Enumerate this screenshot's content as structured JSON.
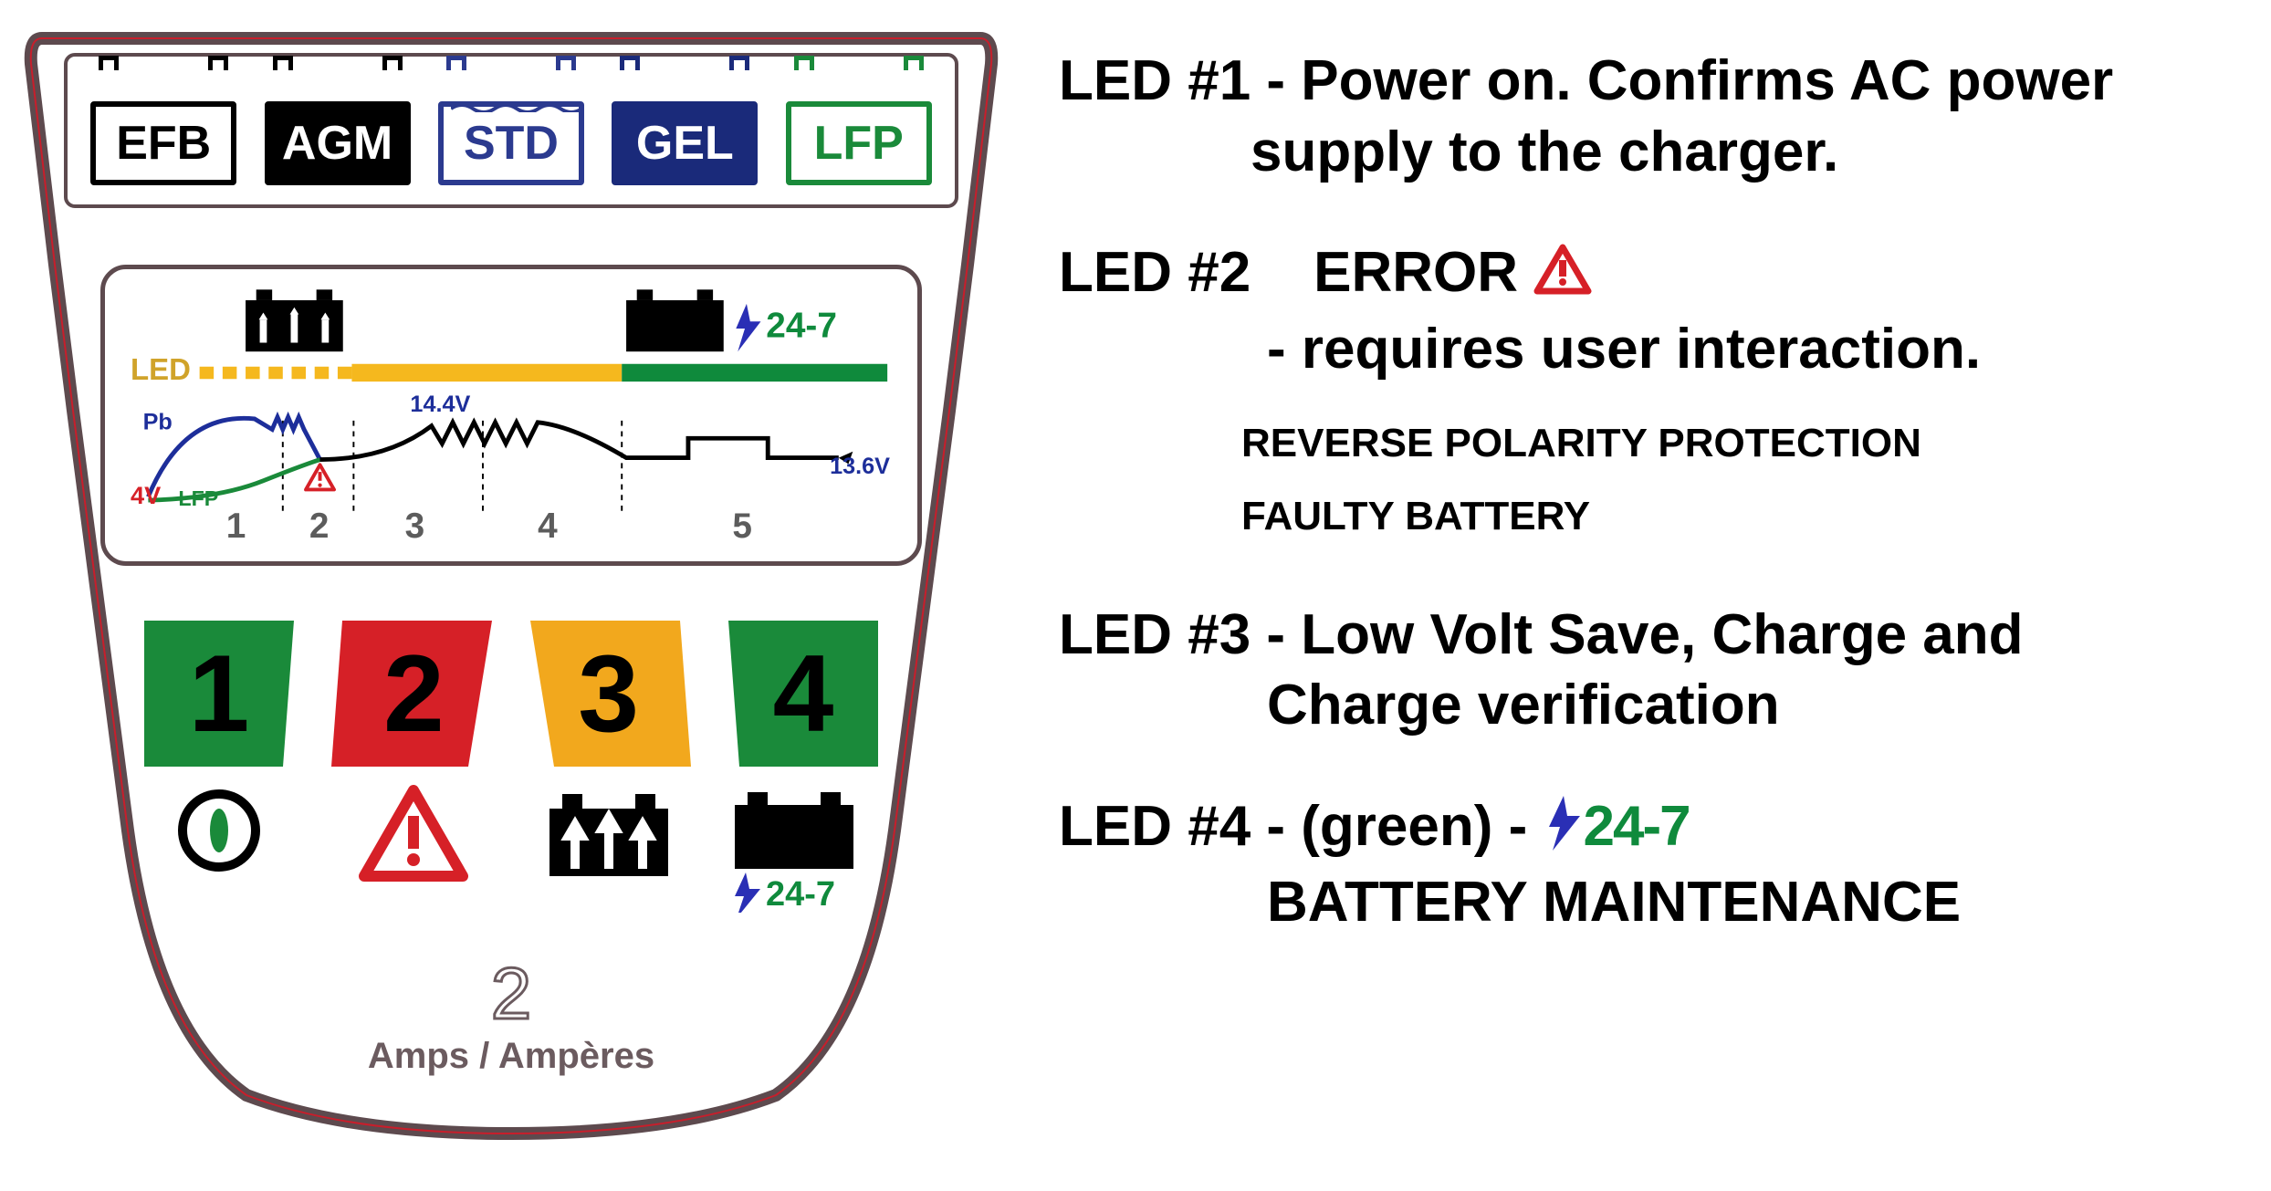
{
  "colors": {
    "frame": "#5d4a4e",
    "panel_bg": "#ffffff",
    "panel_inner_stroke": "#c81e2b",
    "efb_border": "#000000",
    "efb_text": "#000000",
    "efb_fill": "#ffffff",
    "agm_border": "#000000",
    "agm_text": "#ffffff",
    "agm_fill": "#000000",
    "std_border": "#2b3a8f",
    "std_text": "#2b3a8f",
    "std_fill": "#ffffff",
    "gel_border": "#1a2a7a",
    "gel_text": "#ffffff",
    "gel_fill": "#1a2a7a",
    "lfp_border": "#1a8a3a",
    "lfp_text": "#1a8a3a",
    "lfp_fill": "#ffffff",
    "led_label": "#d0a32a",
    "yellow_bar": "#f5b81e",
    "green_bar": "#0f8a3c",
    "blue_curve": "#1d2e9a",
    "black_curve": "#000000",
    "lfp_curve": "#1a8a3a",
    "red_4v": "#d62027",
    "stage_num": "#5c5c5c",
    "key1_fill": "#1a8a3a",
    "key1_num": "#000000",
    "key2_fill": "#d62027",
    "key2_num": "#000000",
    "key3_fill": "#f2a81d",
    "key3_num": "#000000",
    "key4_fill": "#1a8a3a",
    "key4_num": "#000000",
    "warn_red": "#d62027",
    "bolt_blue": "#2a2fb5",
    "text_247": "#0f8a3c",
    "amps_text": "#6b5b5f"
  },
  "battery_types": [
    {
      "label": "EFB",
      "key": "efb",
      "wave": false
    },
    {
      "label": "AGM",
      "key": "agm",
      "wave": false
    },
    {
      "label": "STD",
      "key": "std",
      "wave": true
    },
    {
      "label": "GEL",
      "key": "gel",
      "wave": false
    },
    {
      "label": "LFP",
      "key": "lfp",
      "wave": false
    }
  ],
  "chart": {
    "led_label": "LED",
    "pb_label": "Pb",
    "lfp_label": "LFP",
    "v4_label": "4V",
    "v_peak": "14.4V",
    "v_float": "13.6V",
    "stages": [
      "1",
      "2",
      "3",
      "4",
      "5"
    ],
    "text_247": "24-7"
  },
  "led_keys": [
    {
      "n": "1",
      "fill_key": "key1_fill",
      "num_key": "key1_num",
      "shape": "trapL"
    },
    {
      "n": "2",
      "fill_key": "key2_fill",
      "num_key": "key2_num",
      "shape": "trapLin"
    },
    {
      "n": "3",
      "fill_key": "key3_fill",
      "num_key": "key3_num",
      "shape": "trapRin"
    },
    {
      "n": "4",
      "fill_key": "key4_fill",
      "num_key": "key4_num",
      "shape": "trapR"
    }
  ],
  "amps": {
    "value": "2",
    "label": "Amps / Ampères"
  },
  "right": {
    "led1_a": "LED #1 - Power on. Confirms AC power",
    "led1_b": "supply to the charger.",
    "led2_title": "LED #2",
    "led2_error": "ERROR",
    "led2_req": "- requires user interaction.",
    "led2_sub1": "REVERSE POLARITY PROTECTION",
    "led2_sub2": "FAULTY BATTERY",
    "led3_a": "LED #3 - Low Volt Save, Charge and",
    "led3_b": "Charge verification",
    "led4_a": "LED #4 - (green) - ",
    "led4_247": "24-7",
    "led4_b": "BATTERY MAINTENANCE"
  }
}
